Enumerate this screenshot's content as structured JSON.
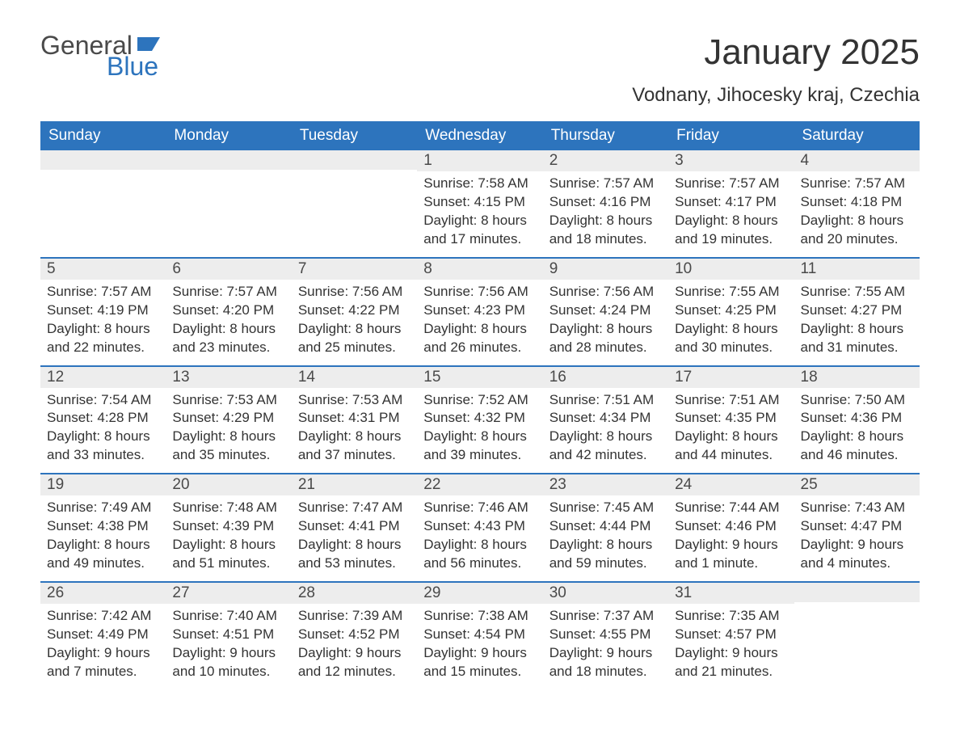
{
  "brand": {
    "word1": "General",
    "word2": "Blue",
    "accent_color": "#2d74bd",
    "text_color": "#4a4a4a"
  },
  "title": "January 2025",
  "subtitle": "Vodnany, Jihocesky kraj, Czechia",
  "colors": {
    "header_bg": "#2d74bd",
    "header_text": "#ffffff",
    "daynum_bg": "#ededed",
    "body_text": "#333333",
    "rule": "#2d74bd"
  },
  "day_names": [
    "Sunday",
    "Monday",
    "Tuesday",
    "Wednesday",
    "Thursday",
    "Friday",
    "Saturday"
  ],
  "weeks": [
    [
      null,
      null,
      null,
      {
        "n": "1",
        "sunrise": "Sunrise: 7:58 AM",
        "sunset": "Sunset: 4:15 PM",
        "daylight": "Daylight: 8 hours and 17 minutes."
      },
      {
        "n": "2",
        "sunrise": "Sunrise: 7:57 AM",
        "sunset": "Sunset: 4:16 PM",
        "daylight": "Daylight: 8 hours and 18 minutes."
      },
      {
        "n": "3",
        "sunrise": "Sunrise: 7:57 AM",
        "sunset": "Sunset: 4:17 PM",
        "daylight": "Daylight: 8 hours and 19 minutes."
      },
      {
        "n": "4",
        "sunrise": "Sunrise: 7:57 AM",
        "sunset": "Sunset: 4:18 PM",
        "daylight": "Daylight: 8 hours and 20 minutes."
      }
    ],
    [
      {
        "n": "5",
        "sunrise": "Sunrise: 7:57 AM",
        "sunset": "Sunset: 4:19 PM",
        "daylight": "Daylight: 8 hours and 22 minutes."
      },
      {
        "n": "6",
        "sunrise": "Sunrise: 7:57 AM",
        "sunset": "Sunset: 4:20 PM",
        "daylight": "Daylight: 8 hours and 23 minutes."
      },
      {
        "n": "7",
        "sunrise": "Sunrise: 7:56 AM",
        "sunset": "Sunset: 4:22 PM",
        "daylight": "Daylight: 8 hours and 25 minutes."
      },
      {
        "n": "8",
        "sunrise": "Sunrise: 7:56 AM",
        "sunset": "Sunset: 4:23 PM",
        "daylight": "Daylight: 8 hours and 26 minutes."
      },
      {
        "n": "9",
        "sunrise": "Sunrise: 7:56 AM",
        "sunset": "Sunset: 4:24 PM",
        "daylight": "Daylight: 8 hours and 28 minutes."
      },
      {
        "n": "10",
        "sunrise": "Sunrise: 7:55 AM",
        "sunset": "Sunset: 4:25 PM",
        "daylight": "Daylight: 8 hours and 30 minutes."
      },
      {
        "n": "11",
        "sunrise": "Sunrise: 7:55 AM",
        "sunset": "Sunset: 4:27 PM",
        "daylight": "Daylight: 8 hours and 31 minutes."
      }
    ],
    [
      {
        "n": "12",
        "sunrise": "Sunrise: 7:54 AM",
        "sunset": "Sunset: 4:28 PM",
        "daylight": "Daylight: 8 hours and 33 minutes."
      },
      {
        "n": "13",
        "sunrise": "Sunrise: 7:53 AM",
        "sunset": "Sunset: 4:29 PM",
        "daylight": "Daylight: 8 hours and 35 minutes."
      },
      {
        "n": "14",
        "sunrise": "Sunrise: 7:53 AM",
        "sunset": "Sunset: 4:31 PM",
        "daylight": "Daylight: 8 hours and 37 minutes."
      },
      {
        "n": "15",
        "sunrise": "Sunrise: 7:52 AM",
        "sunset": "Sunset: 4:32 PM",
        "daylight": "Daylight: 8 hours and 39 minutes."
      },
      {
        "n": "16",
        "sunrise": "Sunrise: 7:51 AM",
        "sunset": "Sunset: 4:34 PM",
        "daylight": "Daylight: 8 hours and 42 minutes."
      },
      {
        "n": "17",
        "sunrise": "Sunrise: 7:51 AM",
        "sunset": "Sunset: 4:35 PM",
        "daylight": "Daylight: 8 hours and 44 minutes."
      },
      {
        "n": "18",
        "sunrise": "Sunrise: 7:50 AM",
        "sunset": "Sunset: 4:36 PM",
        "daylight": "Daylight: 8 hours and 46 minutes."
      }
    ],
    [
      {
        "n": "19",
        "sunrise": "Sunrise: 7:49 AM",
        "sunset": "Sunset: 4:38 PM",
        "daylight": "Daylight: 8 hours and 49 minutes."
      },
      {
        "n": "20",
        "sunrise": "Sunrise: 7:48 AM",
        "sunset": "Sunset: 4:39 PM",
        "daylight": "Daylight: 8 hours and 51 minutes."
      },
      {
        "n": "21",
        "sunrise": "Sunrise: 7:47 AM",
        "sunset": "Sunset: 4:41 PM",
        "daylight": "Daylight: 8 hours and 53 minutes."
      },
      {
        "n": "22",
        "sunrise": "Sunrise: 7:46 AM",
        "sunset": "Sunset: 4:43 PM",
        "daylight": "Daylight: 8 hours and 56 minutes."
      },
      {
        "n": "23",
        "sunrise": "Sunrise: 7:45 AM",
        "sunset": "Sunset: 4:44 PM",
        "daylight": "Daylight: 8 hours and 59 minutes."
      },
      {
        "n": "24",
        "sunrise": "Sunrise: 7:44 AM",
        "sunset": "Sunset: 4:46 PM",
        "daylight": "Daylight: 9 hours and 1 minute."
      },
      {
        "n": "25",
        "sunrise": "Sunrise: 7:43 AM",
        "sunset": "Sunset: 4:47 PM",
        "daylight": "Daylight: 9 hours and 4 minutes."
      }
    ],
    [
      {
        "n": "26",
        "sunrise": "Sunrise: 7:42 AM",
        "sunset": "Sunset: 4:49 PM",
        "daylight": "Daylight: 9 hours and 7 minutes."
      },
      {
        "n": "27",
        "sunrise": "Sunrise: 7:40 AM",
        "sunset": "Sunset: 4:51 PM",
        "daylight": "Daylight: 9 hours and 10 minutes."
      },
      {
        "n": "28",
        "sunrise": "Sunrise: 7:39 AM",
        "sunset": "Sunset: 4:52 PM",
        "daylight": "Daylight: 9 hours and 12 minutes."
      },
      {
        "n": "29",
        "sunrise": "Sunrise: 7:38 AM",
        "sunset": "Sunset: 4:54 PM",
        "daylight": "Daylight: 9 hours and 15 minutes."
      },
      {
        "n": "30",
        "sunrise": "Sunrise: 7:37 AM",
        "sunset": "Sunset: 4:55 PM",
        "daylight": "Daylight: 9 hours and 18 minutes."
      },
      {
        "n": "31",
        "sunrise": "Sunrise: 7:35 AM",
        "sunset": "Sunset: 4:57 PM",
        "daylight": "Daylight: 9 hours and 21 minutes."
      },
      null
    ]
  ]
}
